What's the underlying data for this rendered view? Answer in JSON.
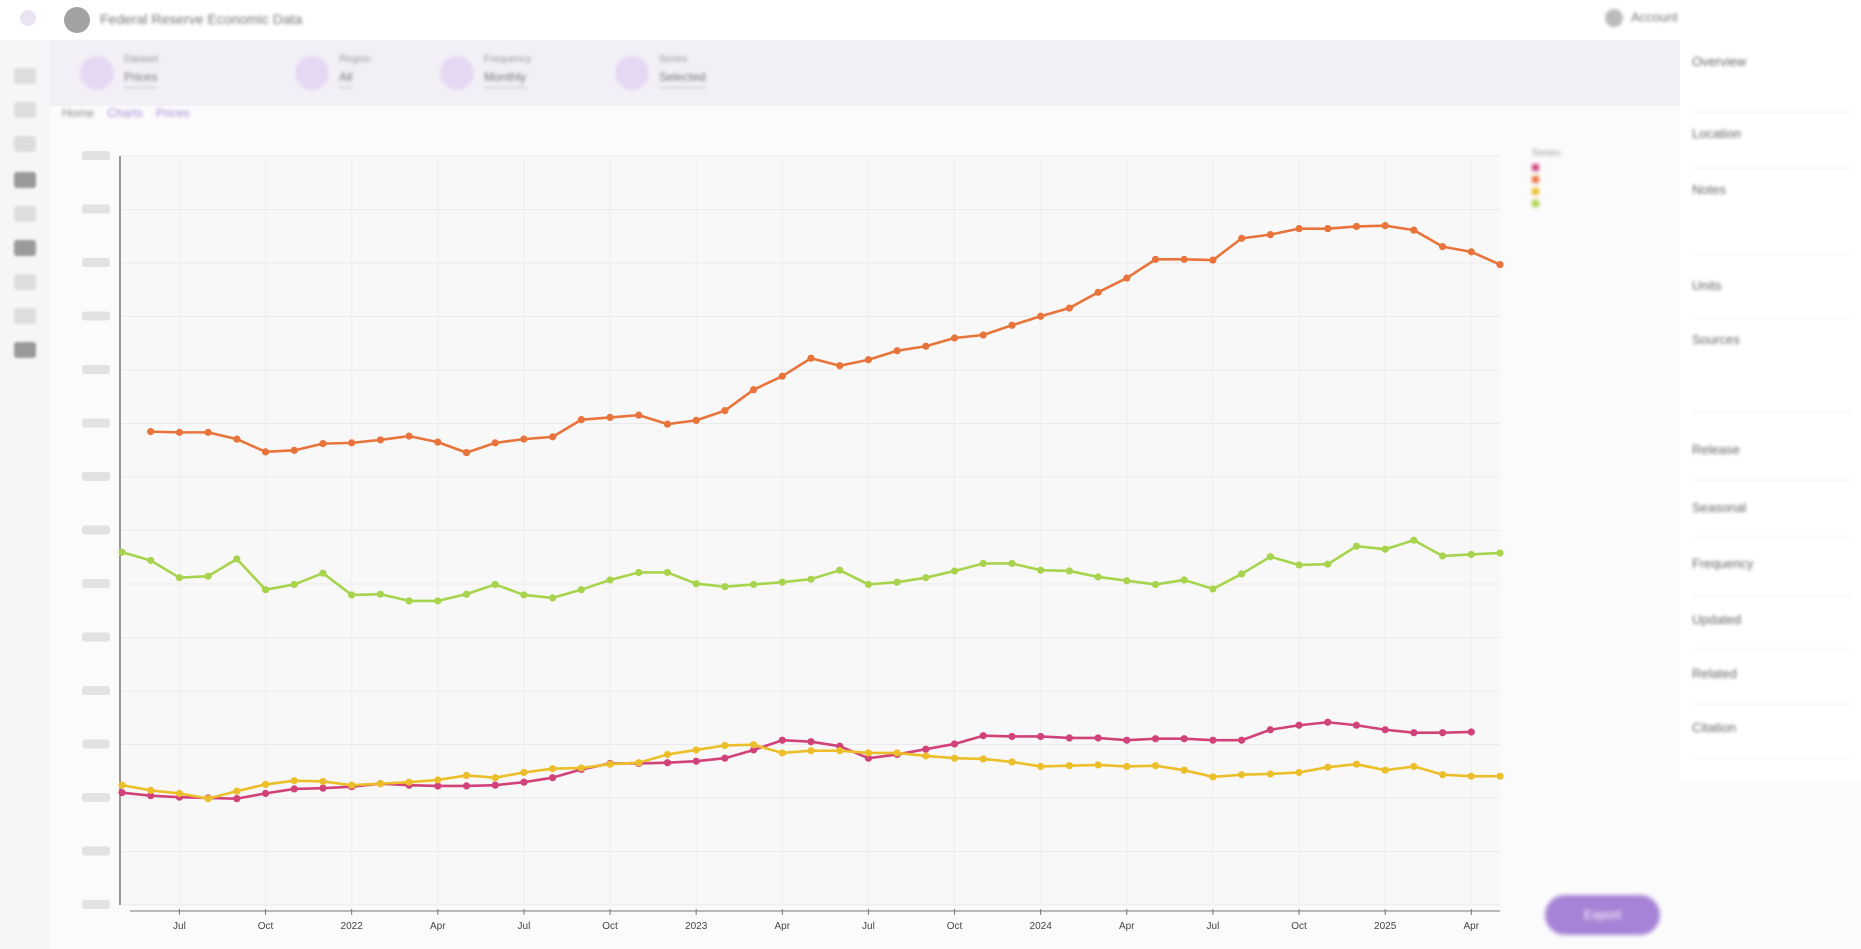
{
  "app": {
    "title": "Federal Reserve Economic Data",
    "user": "Account"
  },
  "filters": [
    {
      "label": "Dataset",
      "value": "Prices"
    },
    {
      "label": "Region",
      "value": "All"
    },
    {
      "label": "Frequency",
      "value": "Monthly"
    },
    {
      "label": "Series",
      "value": "Selected"
    }
  ],
  "breadcrumbs": [
    "Home",
    "Charts",
    "Prices"
  ],
  "legend": {
    "title": "Series"
  },
  "side_panel": [
    {
      "title": "Overview"
    },
    {
      "title": "Location"
    },
    {
      "title": "Notes"
    },
    {
      "title": "Units"
    },
    {
      "title": "Sources"
    },
    {
      "title": "Release"
    },
    {
      "title": "Seasonal"
    },
    {
      "title": "Frequency"
    },
    {
      "title": "Updated"
    },
    {
      "title": "Related"
    },
    {
      "title": "Citation"
    }
  ],
  "action_button": "Export",
  "chart_data": {
    "type": "line",
    "x_ticks": [
      "Jul",
      "Oct",
      "2022",
      "Apr",
      "Jul",
      "Oct",
      "2023",
      "Apr",
      "Jul",
      "Oct",
      "2024",
      "Apr",
      "Jul",
      "Oct",
      "2025",
      "Apr"
    ],
    "grid": true,
    "legend_placement": "top-right",
    "colors": {
      "orange": "#e8743b",
      "green": "#a7d34d",
      "magenta": "#d2427a",
      "yellow": "#ecbe2a"
    },
    "series": [
      {
        "color": "#e8743b",
        "start_month_index": 1,
        "values": [
          0.632,
          0.631,
          0.631,
          0.622,
          0.605,
          0.607,
          0.616,
          0.617,
          0.621,
          0.626,
          0.618,
          0.604,
          0.617,
          0.622,
          0.625,
          0.648,
          0.651,
          0.654,
          0.642,
          0.647,
          0.66,
          0.688,
          0.706,
          0.73,
          0.72,
          0.728,
          0.74,
          0.746,
          0.757,
          0.761,
          0.774,
          0.786,
          0.797,
          0.818,
          0.837,
          0.862,
          0.862,
          0.861,
          0.89,
          0.895,
          0.903,
          0.903,
          0.906,
          0.907,
          0.901,
          0.879,
          0.872,
          0.855
        ]
      },
      {
        "color": "#a7d34d",
        "start_month_index": 0,
        "values": [
          0.471,
          0.46,
          0.437,
          0.439,
          0.462,
          0.421,
          0.428,
          0.443,
          0.414,
          0.415,
          0.406,
          0.406,
          0.415,
          0.428,
          0.414,
          0.41,
          0.421,
          0.434,
          0.444,
          0.444,
          0.429,
          0.425,
          0.428,
          0.431,
          0.435,
          0.447,
          0.428,
          0.431,
          0.437,
          0.446,
          0.456,
          0.456,
          0.447,
          0.446,
          0.438,
          0.433,
          0.428,
          0.434,
          0.422,
          0.442,
          0.465,
          0.454,
          0.455,
          0.479,
          0.475,
          0.487,
          0.466,
          0.468,
          0.47
        ]
      },
      {
        "color": "#d2427a",
        "start_month_index": 0,
        "values": [
          0.15,
          0.146,
          0.144,
          0.143,
          0.142,
          0.149,
          0.155,
          0.156,
          0.158,
          0.162,
          0.16,
          0.159,
          0.159,
          0.16,
          0.164,
          0.17,
          0.181,
          0.189,
          0.189,
          0.19,
          0.192,
          0.196,
          0.207,
          0.22,
          0.218,
          0.212,
          0.196,
          0.201,
          0.208,
          0.215,
          0.226,
          0.225,
          0.225,
          0.223,
          0.223,
          0.22,
          0.222,
          0.222,
          0.22,
          0.22,
          0.234,
          0.24,
          0.244,
          0.24,
          0.234,
          0.23,
          0.23,
          0.231
        ]
      },
      {
        "color": "#ecbe2a",
        "start_month_index": 0,
        "values": [
          0.16,
          0.153,
          0.149,
          0.142,
          0.152,
          0.161,
          0.166,
          0.165,
          0.16,
          0.162,
          0.164,
          0.167,
          0.173,
          0.17,
          0.177,
          0.182,
          0.183,
          0.188,
          0.19,
          0.201,
          0.207,
          0.213,
          0.214,
          0.203,
          0.206,
          0.206,
          0.203,
          0.203,
          0.199,
          0.196,
          0.195,
          0.191,
          0.185,
          0.186,
          0.187,
          0.185,
          0.186,
          0.18,
          0.171,
          0.174,
          0.175,
          0.177,
          0.184,
          0.188,
          0.18,
          0.185,
          0.174,
          0.172,
          0.172
        ]
      }
    ]
  }
}
